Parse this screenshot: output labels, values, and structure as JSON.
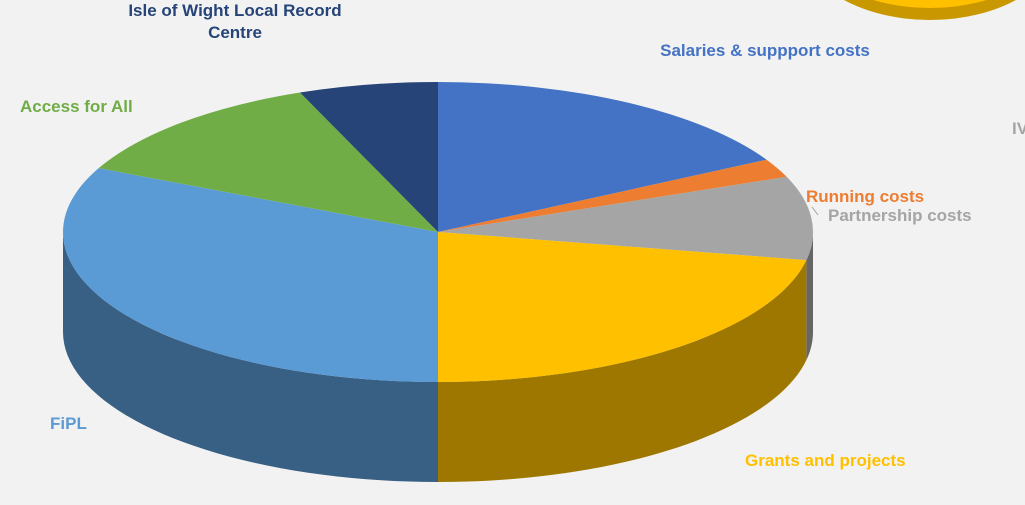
{
  "chart_data": {
    "type": "pie3d",
    "categories": [
      "Salaries & suppport costs",
      "Running costs",
      "Partnership costs",
      "Grants and projects",
      "FiPL",
      "Access for All",
      "Isle of Wight Local Record Centre"
    ],
    "values": [
      17,
      2,
      9,
      22,
      32,
      12,
      6
    ],
    "colors": [
      "#4472c4",
      "#ed7d31",
      "#a5a5a5",
      "#ffc000",
      "#5b9bd5",
      "#70ad47",
      "#264478"
    ]
  },
  "partial_text": "IV"
}
